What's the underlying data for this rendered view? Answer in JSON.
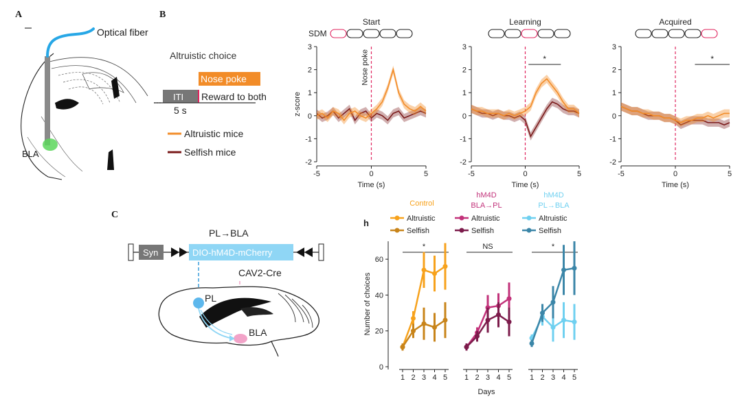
{
  "panels": {
    "A": {
      "letter": "A",
      "fiber_label": "Optical fiber",
      "region_label": "BLA"
    },
    "B": {
      "letter": "B",
      "task_label": "Altruistic choice",
      "nose_poke_label": "Nose poke",
      "iti_label": "ITI",
      "reward_label": "Reward to both",
      "duration_label": "5 s",
      "legend": [
        {
          "name": "Altruistic mice",
          "color": "#f28c28"
        },
        {
          "name": "Selfish mice",
          "color": "#7a1a1a"
        }
      ],
      "sdm_label": "SDM"
    },
    "C": {
      "letter": "C",
      "construct_title": "PL→BLA",
      "syn_label": "Syn",
      "construct_label": "DIO-hM4D-mCherry",
      "virus_label": "CAV2-Cre",
      "pl_label": "PL",
      "bla_label": "BLA"
    }
  },
  "colors": {
    "altruistic": "#f28c28",
    "selfish": "#7a1a1a",
    "stim_line": "#e0245e",
    "control_alt": "#f7a21c",
    "control_self": "#c8841a",
    "bla_pl_alt": "#c2327a",
    "bla_pl_self": "#7c1b4b",
    "pl_bla_alt": "#6fd0f0",
    "pl_bla_self": "#3b86a8"
  },
  "chart_data": [
    {
      "type": "line",
      "title": "Start",
      "xlabel": "Time (s)",
      "ylabel": "z-score",
      "xlim": [
        -5,
        5
      ],
      "ylim": [
        -2,
        3
      ],
      "xticks": [
        -5,
        0,
        5
      ],
      "yticks": [
        -2,
        -1,
        0,
        1,
        2,
        3
      ],
      "annotation": "Nose poke",
      "significance": "",
      "sdm_highlight": 0,
      "x": [
        -5,
        -4.5,
        -4,
        -3.5,
        -3,
        -2.5,
        -2,
        -1.5,
        -1,
        -0.5,
        0,
        0.5,
        1,
        1.5,
        2,
        2.5,
        3,
        3.5,
        4,
        4.5,
        5
      ],
      "series": [
        {
          "name": "Altruistic mice",
          "values": [
            0,
            0.1,
            -0.1,
            0.2,
            0.1,
            -0.2,
            0.1,
            0.2,
            0,
            -0.1,
            0.1,
            0.3,
            0.6,
            1.2,
            2.0,
            1.0,
            0.5,
            0.3,
            0.2,
            0.4,
            0.2
          ]
        },
        {
          "name": "Selfish mice",
          "values": [
            0.1,
            -0.1,
            0,
            0.2,
            -0.1,
            0.1,
            0.3,
            -0.2,
            0.1,
            0.2,
            -0.1,
            0.1,
            0,
            -0.2,
            0.1,
            0.2,
            -0.1,
            0,
            0.1,
            0.2,
            0.1
          ]
        }
      ]
    },
    {
      "type": "line",
      "title": "Learning",
      "xlabel": "Time (s)",
      "ylabel": "",
      "xlim": [
        -5,
        5
      ],
      "ylim": [
        -2,
        3
      ],
      "xticks": [
        -5,
        0,
        5
      ],
      "yticks": [
        -2,
        -1,
        0,
        1,
        2,
        3
      ],
      "annotation": "",
      "significance": "*",
      "sig_range": [
        0.3,
        3.3
      ],
      "sdm_highlight": 2,
      "x": [
        -5,
        -4.5,
        -4,
        -3.5,
        -3,
        -2.5,
        -2,
        -1.5,
        -1,
        -0.5,
        0,
        0.5,
        1,
        1.5,
        2,
        2.5,
        3,
        3.5,
        4,
        4.5,
        5
      ],
      "series": [
        {
          "name": "Altruistic mice",
          "values": [
            0.3,
            0.2,
            0.2,
            0.1,
            0.1,
            0.1,
            0,
            0.1,
            0,
            0.1,
            0.2,
            0.4,
            1.0,
            1.4,
            1.6,
            1.3,
            1.0,
            0.6,
            0.3,
            0.3,
            0.1
          ]
        },
        {
          "name": "Selfish mice",
          "values": [
            0.3,
            0.2,
            0.1,
            0.1,
            0,
            0.1,
            0,
            0,
            -0.1,
            0,
            -0.2,
            -0.9,
            -0.5,
            -0.1,
            0.3,
            0.6,
            0.5,
            0.3,
            0.2,
            0.2,
            0.1
          ]
        }
      ]
    },
    {
      "type": "line",
      "title": "Acquired",
      "xlabel": "Time (s)",
      "ylabel": "",
      "xlim": [
        -5,
        5
      ],
      "ylim": [
        -2,
        3
      ],
      "xticks": [
        -5,
        0,
        5
      ],
      "yticks": [
        -2,
        -1,
        0,
        1,
        2,
        3
      ],
      "annotation": "",
      "significance": "*",
      "sig_range": [
        1.8,
        5
      ],
      "sdm_highlight": 5,
      "x": [
        -5,
        -4.5,
        -4,
        -3.5,
        -3,
        -2.5,
        -2,
        -1.5,
        -1,
        -0.5,
        0,
        0.5,
        1,
        1.5,
        2,
        2.5,
        3,
        3.5,
        4,
        4.5,
        5
      ],
      "series": [
        {
          "name": "Altruistic mice",
          "values": [
            0.4,
            0.3,
            0.2,
            0.2,
            0.1,
            0.1,
            0,
            0,
            -0.1,
            -0.1,
            -0.2,
            -0.3,
            -0.2,
            -0.2,
            -0.1,
            -0.1,
            0,
            -0.1,
            0,
            0.1,
            0.1
          ]
        },
        {
          "name": "Selfish mice",
          "values": [
            0.4,
            0.3,
            0.2,
            0.2,
            0.1,
            0,
            0,
            0,
            -0.1,
            -0.1,
            -0.2,
            -0.4,
            -0.3,
            -0.2,
            -0.2,
            -0.2,
            -0.3,
            -0.3,
            -0.3,
            -0.4,
            -0.3
          ]
        }
      ]
    },
    {
      "type": "line",
      "panel_label": "h",
      "xlabel": "Days",
      "ylabel": "Number of choices",
      "ylim": [
        0,
        70
      ],
      "yticks": [
        0,
        20,
        40,
        60
      ],
      "x": [
        1,
        2,
        3,
        4,
        5
      ],
      "groups": [
        {
          "label": "Control",
          "significance": "*",
          "series": [
            {
              "name": "Altruistic",
              "color": "#f7a21c",
              "values": [
                11,
                27,
                54,
                52,
                56
              ],
              "err": [
                2,
                4,
                10,
                10,
                13
              ]
            },
            {
              "name": "Selfish",
              "color": "#c8841a",
              "values": [
                11,
                20,
                24,
                22,
                26
              ],
              "err": [
                2,
                4,
                9,
                8,
                10
              ]
            }
          ]
        },
        {
          "label": "hM4D\nBLA→PL",
          "significance": "NS",
          "series": [
            {
              "name": "Altruistic",
              "color": "#c2327a",
              "values": [
                11,
                19,
                33,
                34,
                38
              ],
              "err": [
                2,
                3,
                7,
                7,
                9
              ]
            },
            {
              "name": "Selfish",
              "color": "#7c1b4b",
              "values": [
                11,
                17,
                26,
                29,
                25
              ],
              "err": [
                2,
                3,
                7,
                7,
                8
              ]
            }
          ]
        },
        {
          "label": "hM4D\nPL→BLA",
          "significance": "*",
          "series": [
            {
              "name": "Altruistic",
              "color": "#6fd0f0",
              "values": [
                16,
                28,
                22,
                26,
                25
              ],
              "err": [
                2,
                5,
                8,
                10,
                10
              ]
            },
            {
              "name": "Selfish",
              "color": "#3b86a8",
              "values": [
                13,
                30,
                36,
                54,
                55
              ],
              "err": [
                2,
                5,
                9,
                14,
                15
              ]
            }
          ]
        }
      ]
    }
  ]
}
